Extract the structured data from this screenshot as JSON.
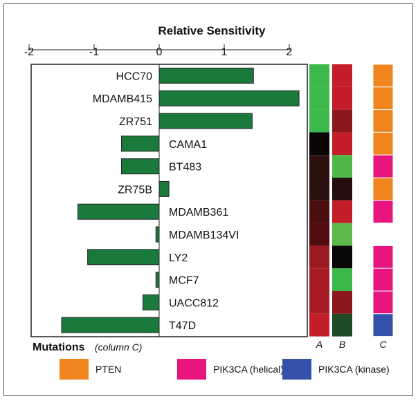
{
  "chart_data": {
    "type": "bar",
    "orientation": "horizontal",
    "title": "Relative Sensitivity",
    "xlim": [
      -2,
      2.3
    ],
    "x_ticks": [
      "-2",
      "-1",
      "0",
      "1",
      "2"
    ],
    "categories": [
      "HCC70",
      "MDAMB415",
      "ZR751",
      "CAMA1",
      "BT483",
      "ZR75B",
      "MDAMB361",
      "MDAMB134VI",
      "LY2",
      "MCF7",
      "UACC812",
      "T47D"
    ],
    "values": [
      1.45,
      2.15,
      1.43,
      -0.58,
      -0.58,
      0.15,
      -1.25,
      -0.05,
      -1.1,
      -0.05,
      -0.25,
      -1.5
    ],
    "bar_color": "#1a7a3c",
    "heatmap": {
      "columns": [
        "A",
        "B",
        "C"
      ],
      "A": [
        "#3db84a",
        "#3db84a",
        "#3db84a",
        "#0a0606",
        "#2c0f0f",
        "#2c0f0f",
        "#4a0d10",
        "#520d12",
        "#9c1a22",
        "#a81b24",
        "#a81b24",
        "#c41e2a"
      ],
      "B": [
        "#c41e2a",
        "#c41e2a",
        "#8c171e",
        "#c41e2a",
        "#4fb848",
        "#250d0d",
        "#c41e2a",
        "#5dba4a",
        "#0a0707",
        "#3cb84a",
        "#8c171e",
        "#1e4a26"
      ],
      "C": [
        "PTEN",
        "PTEN",
        "PTEN",
        "PTEN",
        "PIK3CA (helical)",
        "PTEN",
        "PIK3CA (helical)",
        null,
        "PIK3CA (helical)",
        "PIK3CA (helical)",
        "PIK3CA (helical)",
        "PIK3CA (kinase)"
      ]
    },
    "mutations_legend": {
      "title": "Mutations",
      "subtitle": "(column C)",
      "items": [
        {
          "label": "PTEN",
          "color": "#f0841e"
        },
        {
          "label": "PIK3CA (helical)",
          "color": "#e8157e"
        },
        {
          "label": "PIK3CA (kinase)",
          "color": "#3450a8"
        }
      ]
    }
  }
}
